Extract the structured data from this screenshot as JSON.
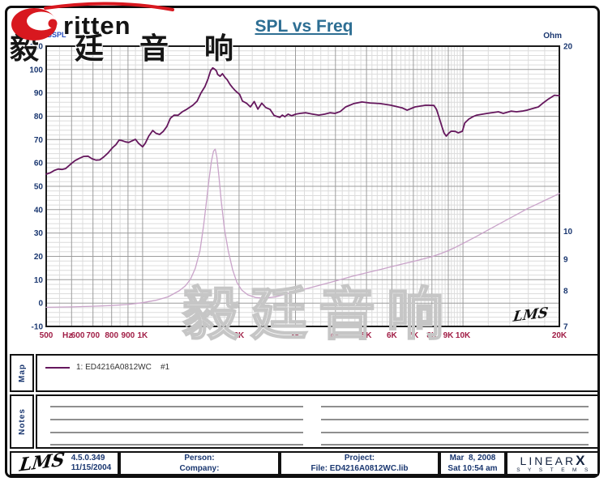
{
  "brand": {
    "logo_text": "ritten",
    "logo_color": "#d8181f"
  },
  "title": "SPL vs Freq",
  "watermarks": {
    "top": "毅廷音响",
    "bottom": "毅廷音响"
  },
  "plot_logo": "LMS",
  "chart_data": {
    "type": "line",
    "title": "SPL vs Freq",
    "x_axis": {
      "scale": "log",
      "min": 500,
      "max": 20000,
      "color": "#a01d45",
      "major": [
        500,
        600,
        700,
        800,
        900,
        1000,
        2000,
        3000,
        4000,
        5000,
        6000,
        7000,
        8000,
        9000,
        10000,
        20000
      ],
      "minor": [
        550,
        650,
        750,
        850,
        950,
        1200,
        1400,
        1600,
        1800,
        2200,
        2400,
        2600,
        2800,
        3200,
        3400,
        3600,
        3800,
        4200,
        4400,
        4600,
        4800,
        5200,
        5400,
        5600,
        5800,
        6200,
        6400,
        6600,
        6800,
        7200,
        7400,
        7600,
        7800,
        8200,
        8400,
        8600,
        8800,
        9200,
        9400,
        9600,
        9800,
        12000,
        14000,
        16000,
        18000
      ],
      "labels": [
        {
          "f": 500,
          "t": "500"
        },
        {
          "f": 582,
          "t": "Hz"
        },
        {
          "f": 628,
          "t": "600"
        },
        {
          "f": 700,
          "t": "700"
        },
        {
          "f": 800,
          "t": "800"
        },
        {
          "f": 900,
          "t": "900"
        },
        {
          "f": 1000,
          "t": "1K"
        },
        {
          "f": 2000,
          "t": "2K"
        },
        {
          "f": 3000,
          "t": "3K"
        },
        {
          "f": 4000,
          "t": "4K"
        },
        {
          "f": 5000,
          "t": "5K"
        },
        {
          "f": 6000,
          "t": "6K"
        },
        {
          "f": 7000,
          "t": "7K"
        },
        {
          "f": 8000,
          "t": "8K"
        },
        {
          "f": 9000,
          "t": "9K"
        },
        {
          "f": 10000,
          "t": "10K"
        },
        {
          "f": 20000,
          "t": "20K"
        }
      ]
    },
    "y_left": {
      "unit": "dBSPL",
      "min": -10,
      "max": 110,
      "major_step": 10,
      "minor_step": 2,
      "color": "#1a3770",
      "unit_color": "#2a4fc0"
    },
    "y_right": {
      "unit": "Ohm",
      "scale": "log",
      "min": 7,
      "max": 20,
      "ticks": [
        20,
        10,
        9,
        8,
        7
      ],
      "color": "#1a3770"
    },
    "series": [
      {
        "name": "SPL  1: ED4216A0812WC #1",
        "axis": "left",
        "color": "#65175d",
        "width": 1.8,
        "points": [
          [
            500,
            55.2
          ],
          [
            515,
            55.8
          ],
          [
            530,
            56.8
          ],
          [
            545,
            57.4
          ],
          [
            560,
            57.2
          ],
          [
            575,
            57.6
          ],
          [
            600,
            59.8
          ],
          [
            615,
            61.0
          ],
          [
            635,
            62.0
          ],
          [
            655,
            62.8
          ],
          [
            675,
            62.9
          ],
          [
            695,
            61.8
          ],
          [
            715,
            61.2
          ],
          [
            735,
            61.3
          ],
          [
            755,
            62.5
          ],
          [
            780,
            64.3
          ],
          [
            805,
            66.5
          ],
          [
            825,
            67.8
          ],
          [
            845,
            69.8
          ],
          [
            865,
            69.5
          ],
          [
            885,
            69.0
          ],
          [
            905,
            68.8
          ],
          [
            925,
            69.4
          ],
          [
            950,
            70.1
          ],
          [
            970,
            68.5
          ],
          [
            1000,
            66.9
          ],
          [
            1020,
            68.5
          ],
          [
            1045,
            71.5
          ],
          [
            1075,
            73.9
          ],
          [
            1100,
            72.7
          ],
          [
            1130,
            72.2
          ],
          [
            1160,
            73.5
          ],
          [
            1190,
            75.6
          ],
          [
            1220,
            79.1
          ],
          [
            1255,
            80.5
          ],
          [
            1290,
            80.4
          ],
          [
            1330,
            81.9
          ],
          [
            1375,
            83.0
          ],
          [
            1435,
            84.7
          ],
          [
            1480,
            86.5
          ],
          [
            1520,
            89.9
          ],
          [
            1565,
            92.7
          ],
          [
            1600,
            96.0
          ],
          [
            1630,
            99.5
          ],
          [
            1655,
            100.7
          ],
          [
            1680,
            100.1
          ],
          [
            1700,
            99.4
          ],
          [
            1715,
            97.9
          ],
          [
            1745,
            97.1
          ],
          [
            1775,
            98.2
          ],
          [
            1810,
            96.5
          ],
          [
            1835,
            95.7
          ],
          [
            1875,
            93.6
          ],
          [
            1910,
            92.2
          ],
          [
            1945,
            91.0
          ],
          [
            2010,
            89.3
          ],
          [
            2050,
            86.5
          ],
          [
            2110,
            85.6
          ],
          [
            2170,
            84.0
          ],
          [
            2230,
            86.3
          ],
          [
            2290,
            83.0
          ],
          [
            2355,
            85.6
          ],
          [
            2425,
            83.7
          ],
          [
            2500,
            82.9
          ],
          [
            2575,
            80.3
          ],
          [
            2680,
            79.5
          ],
          [
            2730,
            80.5
          ],
          [
            2780,
            79.8
          ],
          [
            2845,
            80.9
          ],
          [
            2920,
            80.2
          ],
          [
            3010,
            80.9
          ],
          [
            3100,
            81.2
          ],
          [
            3230,
            81.5
          ],
          [
            3390,
            80.9
          ],
          [
            3550,
            80.5
          ],
          [
            3705,
            80.9
          ],
          [
            3845,
            81.5
          ],
          [
            3985,
            81.2
          ],
          [
            4140,
            82.0
          ],
          [
            4305,
            84.0
          ],
          [
            4560,
            85.4
          ],
          [
            4840,
            86.1
          ],
          [
            5120,
            85.7
          ],
          [
            5520,
            85.4
          ],
          [
            5950,
            84.7
          ],
          [
            6450,
            83.6
          ],
          [
            6695,
            82.6
          ],
          [
            7090,
            84.0
          ],
          [
            7660,
            84.7
          ],
          [
            8120,
            84.6
          ],
          [
            8270,
            82.9
          ],
          [
            8425,
            79.5
          ],
          [
            8610,
            75.3
          ],
          [
            8730,
            72.8
          ],
          [
            8870,
            71.5
          ],
          [
            9000,
            72.5
          ],
          [
            9180,
            73.6
          ],
          [
            9450,
            73.5
          ],
          [
            9670,
            72.9
          ],
          [
            9960,
            73.6
          ],
          [
            10130,
            77.1
          ],
          [
            10430,
            78.8
          ],
          [
            10740,
            79.8
          ],
          [
            11050,
            80.5
          ],
          [
            11900,
            81.2
          ],
          [
            12900,
            81.9
          ],
          [
            13360,
            81.2
          ],
          [
            14130,
            82.2
          ],
          [
            14700,
            81.9
          ],
          [
            15300,
            82.2
          ],
          [
            15850,
            82.6
          ],
          [
            16500,
            83.3
          ],
          [
            17200,
            84.0
          ],
          [
            17800,
            85.7
          ],
          [
            18500,
            87.4
          ],
          [
            19300,
            89.0
          ],
          [
            20000,
            88.8
          ]
        ]
      },
      {
        "name": "Impedance (Ohm)",
        "axis": "right",
        "color": "#c9a3c9",
        "width": 1.3,
        "points": [
          [
            500,
            7.52
          ],
          [
            600,
            7.53
          ],
          [
            700,
            7.55
          ],
          [
            800,
            7.57
          ],
          [
            900,
            7.6
          ],
          [
            1000,
            7.65
          ],
          [
            1100,
            7.72
          ],
          [
            1200,
            7.82
          ],
          [
            1300,
            8.0
          ],
          [
            1360,
            8.15
          ],
          [
            1410,
            8.35
          ],
          [
            1460,
            8.7
          ],
          [
            1510,
            9.3
          ],
          [
            1550,
            10.2
          ],
          [
            1580,
            11.1
          ],
          [
            1610,
            12.1
          ],
          [
            1640,
            13.0
          ],
          [
            1665,
            13.5
          ],
          [
            1685,
            13.6
          ],
          [
            1705,
            13.2
          ],
          [
            1730,
            12.3
          ],
          [
            1760,
            11.2
          ],
          [
            1800,
            10.1
          ],
          [
            1850,
            9.3
          ],
          [
            1910,
            8.65
          ],
          [
            1970,
            8.25
          ],
          [
            2040,
            8.02
          ],
          [
            2130,
            7.88
          ],
          [
            2250,
            7.8
          ],
          [
            2400,
            7.78
          ],
          [
            2600,
            7.82
          ],
          [
            2800,
            7.9
          ],
          [
            3000,
            7.98
          ],
          [
            3300,
            8.08
          ],
          [
            3600,
            8.18
          ],
          [
            4000,
            8.3
          ],
          [
            4500,
            8.44
          ],
          [
            5000,
            8.56
          ],
          [
            5500,
            8.66
          ],
          [
            6000,
            8.76
          ],
          [
            6500,
            8.85
          ],
          [
            7000,
            8.93
          ],
          [
            7500,
            9.01
          ],
          [
            8000,
            9.09
          ],
          [
            8500,
            9.19
          ],
          [
            9000,
            9.3
          ],
          [
            9500,
            9.42
          ],
          [
            10000,
            9.55
          ],
          [
            11000,
            9.8
          ],
          [
            12000,
            10.05
          ],
          [
            13000,
            10.28
          ],
          [
            14000,
            10.5
          ],
          [
            15000,
            10.7
          ],
          [
            16000,
            10.9
          ],
          [
            17000,
            11.06
          ],
          [
            18000,
            11.22
          ],
          [
            19000,
            11.37
          ],
          [
            20000,
            11.52
          ]
        ]
      }
    ]
  },
  "map": {
    "label": "Map",
    "legend_text": "1: ED4216A0812WC    #1",
    "legend_color": "#65175d"
  },
  "notes": {
    "label": "Notes"
  },
  "footer": {
    "lms_logo": "LMS",
    "version": "4.5.0.349",
    "build_date": "11/15/2004",
    "person_label": "Person:",
    "company_label": "Company:",
    "project_label": "Project:",
    "file_label": "File: ED4216A0812WC.lib",
    "date": "Mar  8, 2008",
    "time": "Sat 10:54 am",
    "linearx": {
      "prefix": "LINEAR",
      "x": "X",
      "subtitle": "SYSTEMS"
    }
  }
}
